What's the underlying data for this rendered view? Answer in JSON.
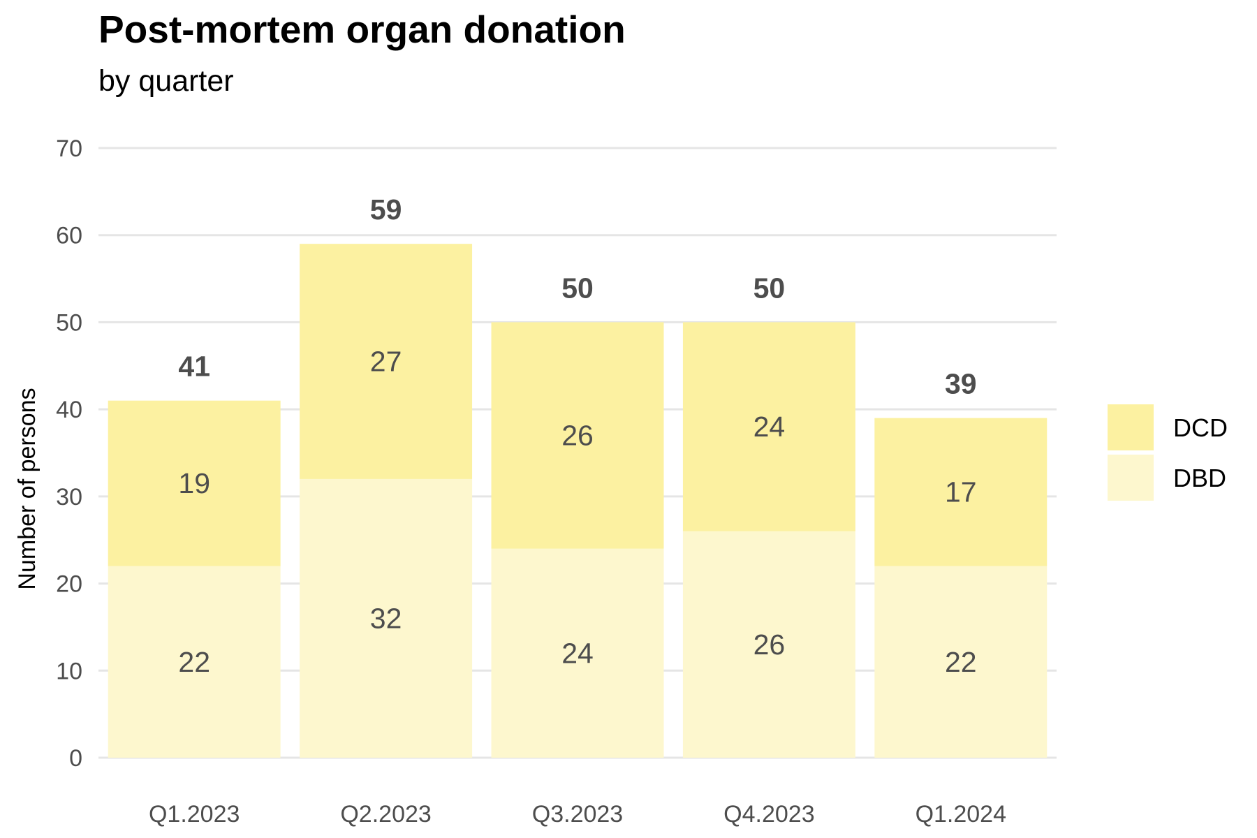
{
  "colors": {
    "DCD": "#fcf1a1",
    "DBD": "#fdf7ce",
    "grid": "#e5e5e5",
    "text": "#4d4d4d"
  },
  "chart_data": {
    "type": "bar",
    "stacked": true,
    "title": "Post-mortem organ donation",
    "subtitle": "by quarter",
    "xlabel": "",
    "ylabel": "Number of persons",
    "ylim": [
      0,
      70
    ],
    "yticks": [
      0,
      10,
      20,
      30,
      40,
      50,
      60,
      70
    ],
    "grid": true,
    "legend_position": "right",
    "categories": [
      "Q1.2023",
      "Q2.2023",
      "Q3.2023",
      "Q4.2023",
      "Q1.2024"
    ],
    "series": [
      {
        "name": "DBD",
        "values": [
          22,
          32,
          24,
          26,
          22
        ]
      },
      {
        "name": "DCD",
        "values": [
          19,
          27,
          26,
          24,
          17
        ]
      }
    ],
    "totals": [
      41,
      59,
      50,
      50,
      39
    ],
    "legend_order": [
      "DCD",
      "DBD"
    ]
  }
}
